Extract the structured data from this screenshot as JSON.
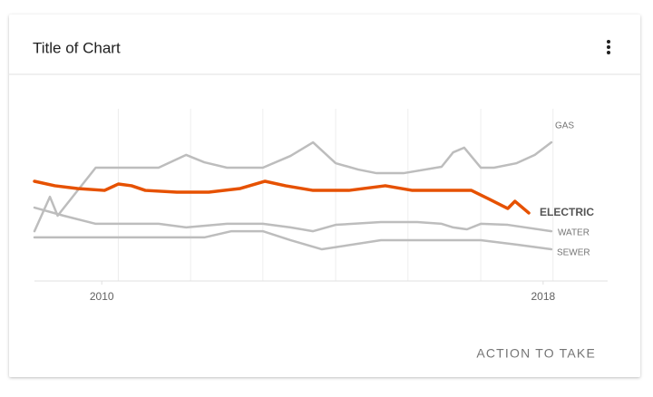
{
  "chart_data": {
    "type": "line",
    "title": "Title of Chart",
    "xlim": [
      2008.78,
      2019.17
    ],
    "ylim": [
      0,
      100
    ],
    "xticks": [
      2010,
      2018
    ],
    "xgrid": [
      2010.3,
      2011.61,
      2012.92,
      2014.24,
      2015.55,
      2016.87,
      2018.18
    ],
    "series": [
      {
        "name": "GAS",
        "color": "#bdbdbd",
        "x": [
          2008.78,
          2009.06,
          2009.2,
          2009.89,
          2011.03,
          2011.53,
          2011.86,
          2012.27,
          2012.92,
          2013.42,
          2013.83,
          2014.24,
          2014.65,
          2014.98,
          2015.47,
          2016.16,
          2016.37,
          2016.57,
          2016.87,
          2017.11,
          2017.52,
          2017.85,
          2018.15
        ],
        "values": [
          28.9,
          48.9,
          37.9,
          65.8,
          65.8,
          73.2,
          68.9,
          65.8,
          65.8,
          72.6,
          80.5,
          68.4,
          64.7,
          62.6,
          62.6,
          66.3,
          74.7,
          77.4,
          65.8,
          65.8,
          68.4,
          73.2,
          80.5
        ]
      },
      {
        "name": "ELECTRIC",
        "color": "#e65100",
        "x": [
          2008.78,
          2009.15,
          2009.56,
          2010.05,
          2010.3,
          2010.54,
          2010.79,
          2011.36,
          2011.94,
          2012.51,
          2012.96,
          2013.33,
          2013.83,
          2014.48,
          2015.14,
          2015.63,
          2016.7,
          2017.03,
          2017.36,
          2017.49,
          2017.74
        ],
        "values": [
          57.9,
          55.3,
          53.7,
          52.6,
          56.3,
          55.3,
          52.6,
          51.6,
          51.6,
          53.7,
          57.9,
          55.3,
          52.6,
          52.6,
          55.3,
          52.6,
          52.6,
          47.4,
          42.1,
          46.3,
          39.5
        ]
      },
      {
        "name": "WATER",
        "color": "#bdbdbd",
        "x": [
          2008.78,
          2009.31,
          2009.89,
          2011.03,
          2011.53,
          2012.27,
          2012.92,
          2013.42,
          2013.83,
          2014.24,
          2015.06,
          2015.72,
          2016.16,
          2016.37,
          2016.62,
          2016.87,
          2017.36,
          2018.15
        ],
        "values": [
          42.6,
          37.9,
          33.2,
          33.2,
          31.1,
          33.2,
          33.2,
          31.1,
          28.9,
          32.6,
          34.2,
          34.2,
          33.2,
          31.1,
          30,
          33.2,
          32.6,
          28.9
        ]
      },
      {
        "name": "SEWER",
        "color": "#bdbdbd",
        "x": [
          2008.78,
          2011.86,
          2012.35,
          2012.92,
          2013.42,
          2013.99,
          2015.06,
          2016.87,
          2017.52,
          2018.15
        ],
        "values": [
          25.3,
          25.3,
          28.9,
          28.9,
          23.7,
          18.4,
          23.7,
          23.7,
          21.1,
          18.4
        ]
      }
    ]
  },
  "card": {
    "action": "ACTION TO TAKE"
  }
}
